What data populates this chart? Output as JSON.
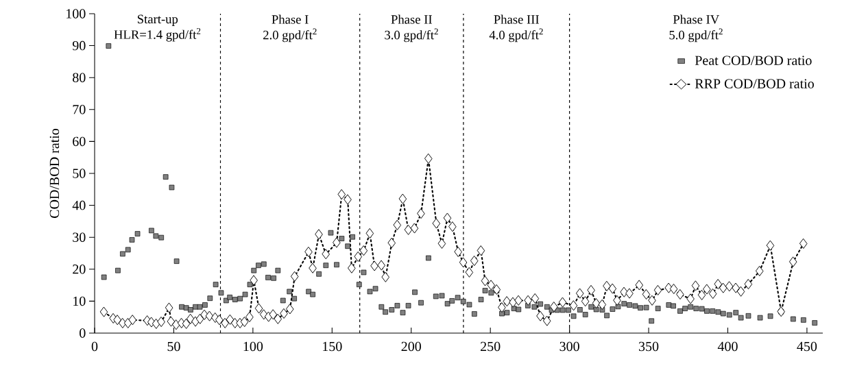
{
  "chart_data": {
    "type": "scatter",
    "ylabel": "COD/BOD ratio",
    "xlim": [
      0,
      460
    ],
    "ylim": [
      0,
      100
    ],
    "xticks": [
      0,
      50,
      100,
      150,
      200,
      250,
      300,
      350,
      400,
      450
    ],
    "yticks": [
      0,
      10,
      20,
      30,
      40,
      50,
      60,
      70,
      80,
      90,
      100
    ],
    "legend": "top right",
    "grid": false,
    "annotations": [
      "Start-up",
      "HLR=1.4 gpd/ft$^{2}$",
      "Phase I",
      "2.0 gpd/ft$^{2}$",
      "Phase II",
      "3.0 gpd/ft$^{2}$",
      "Phase III",
      "4.0 gpd/ft$^{2}$",
      "Phase IV",
      "5.0 gpd/ft$^{2}$"
    ],
    "ref_lines": [
      {
        "axis": "x",
        "value": 79.5,
        "line_style": "dashed"
      },
      {
        "axis": "x",
        "value": 167.5,
        "line_style": "dashed"
      },
      {
        "axis": "x",
        "value": 233,
        "line_style": "dashed"
      },
      {
        "axis": "x",
        "value": 300,
        "line_style": "dashed"
      }
    ],
    "series": [
      {
        "name": "Peat COD/BOD ratio",
        "marker": "square",
        "color": "#808080",
        "x": [
          5.9,
          8.8,
          14.7,
          17.7,
          21.1,
          23.6,
          27.1,
          35.9,
          38.7,
          42.1,
          44.9,
          48.7,
          51.8,
          55.0,
          57.9,
          60.6,
          63.7,
          66.5,
          69.7,
          72.9,
          76.5,
          79.9,
          83.1,
          85.4,
          88.7,
          91.9,
          95.1,
          98.1,
          100.6,
          103.5,
          106.9,
          109.6,
          113.1,
          115.8,
          119.0,
          123.1,
          126.1,
          135.2,
          137.8,
          141.7,
          146.1,
          149.2,
          152.9,
          156.1,
          159.9,
          162.9,
          167.1,
          170.0,
          173.9,
          177.4,
          181.2,
          183.7,
          187.7,
          191.2,
          194.7,
          198.2,
          202.3,
          206.2,
          210.9,
          215.6,
          219.4,
          222.9,
          225.8,
          229.4,
          232.9,
          236.7,
          239.9,
          244.1,
          246.7,
          250.5,
          254.0,
          257.3,
          260.5,
          264.9,
          267.8,
          273.7,
          277.8,
          281.6,
          285.8,
          288.7,
          292.2,
          295.7,
          299.3,
          302.6,
          306.6,
          310.0,
          313.7,
          316.9,
          320.7,
          323.6,
          327.2,
          330.7,
          334.5,
          337.9,
          341.5,
          344.8,
          348.5,
          351.8,
          355.9,
          362.7,
          365.6,
          369.9,
          373.0,
          376.5,
          380.0,
          383.6,
          386.8,
          390.4,
          393.9,
          397.1,
          401.0,
          405.1,
          408.3,
          413.0,
          420.4,
          426.9,
          433.7,
          441.3,
          447.8,
          454.9
        ],
        "values": [
          17.5,
          89.9,
          19.6,
          24.8,
          26.1,
          29.2,
          31.1,
          32.1,
          30.4,
          29.9,
          48.9,
          45.6,
          22.5,
          8.2,
          7.9,
          7.3,
          8.2,
          8.2,
          8.8,
          10.9,
          15.2,
          12.6,
          10.2,
          11.2,
          10.5,
          10.8,
          12.1,
          15.2,
          19.6,
          21.2,
          21.6,
          17.4,
          17.2,
          19.6,
          10.2,
          13.0,
          10.8,
          13.0,
          12.1,
          18.5,
          21.2,
          31.4,
          21.4,
          29.6,
          27.2,
          30.1,
          15.2,
          19.0,
          13.0,
          13.9,
          8.2,
          6.6,
          7.3,
          8.6,
          6.4,
          8.6,
          12.8,
          9.5,
          23.5,
          11.5,
          11.7,
          9.2,
          10.1,
          11.1,
          9.9,
          8.9,
          6.0,
          10.5,
          13.3,
          12.6,
          13.3,
          6.1,
          6.4,
          7.7,
          7.4,
          8.6,
          8.2,
          9.1,
          8.2,
          7.2,
          7.2,
          7.2,
          7.2,
          5.3,
          7.3,
          5.8,
          8.2,
          7.4,
          7.3,
          5.5,
          7.5,
          8.3,
          9.2,
          8.8,
          8.5,
          7.9,
          8.0,
          3.8,
          7.7,
          8.8,
          8.5,
          6.9,
          7.7,
          8.2,
          7.7,
          7.6,
          6.9,
          6.9,
          6.6,
          6.1,
          5.7,
          6.4,
          4.8,
          5.4,
          4.8,
          5.3,
          6.7,
          4.4,
          4.1,
          3.2
        ]
      },
      {
        "name": "RRP COD/BOD ratio",
        "type": "line",
        "marker": "diamond",
        "line_style": "dotted",
        "color": "#000000",
        "x": [
          5.9,
          11.8,
          14.4,
          17.7,
          21.1,
          24.0,
          33.3,
          35.9,
          38.9,
          42.1,
          47.1,
          48.3,
          51.5,
          54.9,
          57.9,
          60.6,
          63.7,
          66.6,
          69.4,
          72.6,
          76.2,
          78.8,
          82.4,
          85.6,
          88.7,
          91.9,
          94.7,
          97.9,
          100.6,
          103.8,
          106.9,
          109.9,
          112.8,
          115.8,
          119.6,
          123.4,
          126.4,
          135.2,
          137.8,
          141.7,
          146.1,
          152.9,
          156.1,
          159.9,
          162.4,
          166.5,
          170.0,
          173.9,
          176.8,
          181.2,
          183.8,
          187.7,
          191.2,
          194.7,
          198.2,
          202.1,
          206.2,
          210.9,
          215.9,
          219.4,
          222.9,
          226.1,
          229.7,
          232.9,
          236.7,
          239.9,
          244.1,
          246.7,
          250.5,
          254.0,
          257.3,
          260.5,
          264.3,
          267.8,
          273.9,
          278.3,
          281.6,
          285.8,
          290.2,
          295.7,
          302.6,
          306.6,
          310.0,
          313.7,
          316.9,
          320.7,
          323.6,
          327.2,
          330.1,
          334.5,
          337.9,
          344.1,
          348.5,
          352.2,
          355.9,
          362.7,
          365.9,
          369.9,
          376.5,
          379.7,
          383.6,
          386.8,
          390.6,
          393.9,
          397.1,
          401.0,
          405.1,
          408.3,
          413.0,
          420.1,
          426.9,
          433.7,
          441.3,
          447.8
        ],
        "values": [
          6.6,
          4.6,
          4.1,
          3.1,
          3.1,
          4.1,
          3.9,
          3.4,
          2.9,
          3.5,
          7.9,
          3.6,
          2.6,
          3.1,
          2.9,
          4.4,
          3.6,
          4.4,
          5.7,
          5.3,
          4.8,
          4.1,
          3.1,
          4.2,
          3.1,
          3.1,
          3.5,
          5.0,
          16.5,
          7.7,
          5.8,
          5.1,
          5.8,
          4.4,
          6.1,
          7.5,
          17.7,
          25.4,
          20.3,
          30.9,
          24.7,
          28.3,
          43.4,
          41.8,
          20.3,
          23.9,
          25.8,
          31.2,
          21.0,
          21.2,
          17.5,
          28.2,
          33.8,
          42.0,
          32.3,
          32.8,
          37.4,
          54.6,
          34.3,
          28.0,
          36.0,
          33.3,
          25.4,
          22.1,
          19.0,
          22.6,
          25.8,
          16.3,
          15.0,
          13.6,
          8.0,
          9.9,
          9.6,
          10.2,
          10.2,
          10.8,
          5.3,
          3.8,
          8.2,
          9.6,
          8.6,
          12.4,
          9.9,
          13.4,
          9.3,
          8.9,
          14.7,
          13.9,
          10.2,
          12.8,
          12.4,
          15.0,
          12.1,
          10.2,
          13.4,
          14.1,
          13.8,
          12.1,
          10.7,
          14.8,
          11.9,
          13.7,
          12.3,
          15.3,
          14.1,
          14.6,
          14.1,
          13.0,
          15.3,
          19.4,
          27.4,
          6.7,
          22.3,
          28.0
        ]
      }
    ]
  }
}
